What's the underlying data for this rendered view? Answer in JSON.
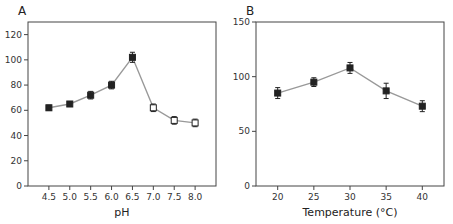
{
  "chart_data": [
    {
      "type": "line",
      "title": "A",
      "x_label": "pH",
      "x": [
        4.5,
        5.0,
        5.5,
        6.0,
        6.5,
        7.0,
        7.5,
        8.0
      ],
      "series": [
        {
          "values": [
            62,
            65,
            72,
            80,
            102,
            62,
            52,
            50
          ],
          "yerr": [
            2,
            2,
            3,
            3,
            4,
            3,
            3,
            3
          ],
          "color": "#999999",
          "marker": "square",
          "colors": [
            "#222222",
            "#222222",
            "#222222",
            "#222222",
            "#222222",
            "#ffffff",
            "#ffffff",
            "#ffffff"
          ]
        }
      ],
      "xlim": [
        4.0,
        8.5
      ],
      "ylim": [
        0,
        130
      ],
      "xticks": [
        4.5,
        {
          "value": 5.0,
          "label": "5.0"
        },
        5.5,
        {
          "value": 6.0,
          "label": "6.0"
        },
        6.5,
        {
          "value": 7.0,
          "label": "7.0"
        },
        7.5,
        {
          "value": 8.0,
          "label": "8.0"
        }
      ],
      "yticks": [
        0,
        20,
        40,
        60,
        80,
        100,
        120
      ]
    },
    {
      "type": "line",
      "title": "B",
      "x_label": "Temperature (°C)",
      "x": [
        20,
        25,
        30,
        35,
        40
      ],
      "series": [
        {
          "values": [
            85,
            95,
            108,
            87,
            73
          ],
          "yerr": [
            5,
            4,
            5,
            7,
            5
          ],
          "color": "#999999",
          "marker": "square",
          "colors": [
            "#222222",
            "#222222",
            "#222222",
            "#222222",
            "#222222"
          ]
        }
      ],
      "xlim": [
        17,
        43
      ],
      "ylim": [
        0,
        150
      ],
      "xticks": [
        20,
        25,
        30,
        35,
        40
      ],
      "yticks": [
        0,
        50,
        100,
        150
      ]
    }
  ]
}
